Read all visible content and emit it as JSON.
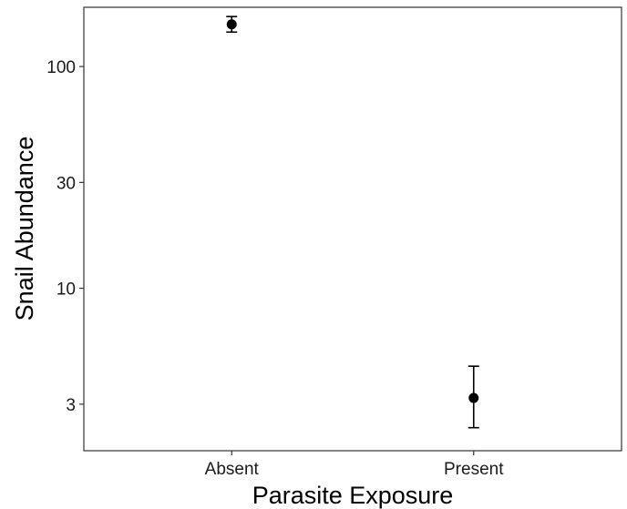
{
  "chart_data": {
    "type": "scatter",
    "xlabel": "Parasite Exposure",
    "ylabel": "Snail Abundance",
    "categories": [
      "Absent",
      "Present"
    ],
    "y_scale": "log",
    "ylim": [
      1.85,
      185
    ],
    "yticks": [
      {
        "value": 3,
        "label": "3"
      },
      {
        "value": 10,
        "label": "10"
      },
      {
        "value": 30,
        "label": "30"
      },
      {
        "value": 100,
        "label": "100"
      }
    ],
    "grid": false,
    "series": [
      {
        "values": [
          155,
          3.2
        ],
        "error_low": [
          143,
          2.35
        ],
        "error_high": [
          168,
          4.45
        ]
      }
    ],
    "colors": {
      "point": "#000000",
      "axis": "#333333",
      "background": "#ffffff"
    }
  }
}
